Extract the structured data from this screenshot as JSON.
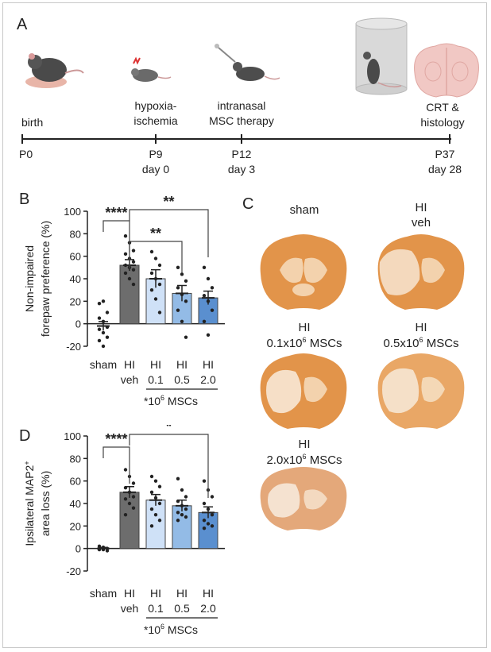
{
  "panels": {
    "a": "A",
    "b": "B",
    "c": "C",
    "d": "D"
  },
  "timeline": {
    "events": [
      {
        "line1": "",
        "line2": "birth"
      },
      {
        "line1": "hypoxia-",
        "line2": "ischemia"
      },
      {
        "line1": "intranasal",
        "line2": "MSC therapy"
      },
      {
        "line1": "CRT &",
        "line2": "histology"
      }
    ],
    "points": [
      {
        "p": "P0",
        "day": ""
      },
      {
        "p": "P9",
        "day": "day 0"
      },
      {
        "p": "P12",
        "day": "day 3"
      },
      {
        "p": "P37",
        "day": "day 28"
      }
    ]
  },
  "panel_c": {
    "labels": [
      {
        "line1": "sham",
        "line2": ""
      },
      {
        "line1": "HI",
        "line2": "veh"
      },
      {
        "line1": "HI",
        "line2": "0.1x10",
        "sup": "6",
        "tail": " MSCs"
      },
      {
        "line1": "HI",
        "line2": "0.5x10",
        "sup": "6",
        "tail": " MSCs"
      },
      {
        "line1": "HI",
        "line2": "2.0x10",
        "sup": "6",
        "tail": " MSCs"
      }
    ],
    "brain_color": "#e2944a",
    "brain_light": "#f3d2ad"
  },
  "chart_data": [
    {
      "type": "bar",
      "panel": "B",
      "ylabel": "Non-impaired forepaw preference (%)",
      "ylim": [
        -20,
        100
      ],
      "yticks": [
        "100",
        "80",
        "60",
        "40",
        "20",
        "0",
        "-20"
      ],
      "categories": [
        "sham",
        "HI",
        "HI",
        "HI",
        "HI"
      ],
      "sublabels": [
        "",
        "veh",
        "0.1",
        "0.5",
        "2.0"
      ],
      "unit_note": "*10",
      "unit_sup": "6",
      "unit_tail": " MSCs",
      "values": [
        -2,
        52,
        40,
        27,
        23
      ],
      "errors": [
        4,
        5,
        8,
        7,
        6
      ],
      "colors": [
        "#ffffff",
        "#6d6d6d",
        "#cfe1f7",
        "#93bbe6",
        "#5a8fcf"
      ],
      "points": [
        [
          18,
          20,
          10,
          5,
          2,
          -3,
          -5,
          -8,
          -12,
          -15,
          -20
        ],
        [
          78,
          72,
          65,
          62,
          58,
          55,
          52,
          50,
          48,
          45,
          40,
          35
        ],
        [
          64,
          58,
          52,
          45,
          40,
          35,
          30,
          22,
          10
        ],
        [
          50,
          44,
          38,
          32,
          26,
          20,
          12,
          2,
          -12
        ],
        [
          50,
          40,
          32,
          25,
          20,
          12,
          2,
          -10
        ]
      ],
      "significance": [
        {
          "from": 0,
          "to": 1,
          "label": "****"
        },
        {
          "from": 1,
          "to": 3,
          "label": "**"
        },
        {
          "from": 1,
          "to": 4,
          "label": "**"
        }
      ]
    },
    {
      "type": "bar",
      "panel": "D",
      "ylabel": "Ipsilateral MAP2+ area loss (%)",
      "ylabel_main": "Ipsilateral MAP2",
      "ylabel_sup": "+",
      "ylabel_line2": "area loss (%)",
      "ylim": [
        -20,
        100
      ],
      "yticks": [
        "100",
        "80",
        "60",
        "40",
        "20",
        "0",
        "-20"
      ],
      "categories": [
        "sham",
        "HI",
        "HI",
        "HI",
        "HI"
      ],
      "sublabels": [
        "",
        "veh",
        "0.1",
        "0.5",
        "2.0"
      ],
      "unit_note": "*10",
      "unit_sup": "6",
      "unit_tail": " MSCs",
      "values": [
        0,
        50,
        43,
        38,
        32
      ],
      "errors": [
        1,
        5,
        5,
        5,
        5
      ],
      "colors": [
        "#ffffff",
        "#6d6d6d",
        "#cfe1f7",
        "#93bbe6",
        "#5a8fcf"
      ],
      "points": [
        [
          2,
          1,
          0,
          0,
          -1,
          -2,
          -1,
          1
        ],
        [
          70,
          64,
          58,
          54,
          50,
          46,
          44,
          40,
          36,
          30
        ],
        [
          64,
          60,
          55,
          50,
          45,
          40,
          35,
          30,
          25,
          20
        ],
        [
          62,
          52,
          46,
          42,
          38,
          35,
          32,
          30,
          28,
          25
        ],
        [
          60,
          52,
          46,
          40,
          35,
          30,
          25,
          22,
          20,
          18
        ]
      ],
      "significance": [
        {
          "from": 0,
          "to": 1,
          "label": "****"
        },
        {
          "from": 1,
          "to": 4,
          "label": "*"
        }
      ]
    }
  ]
}
